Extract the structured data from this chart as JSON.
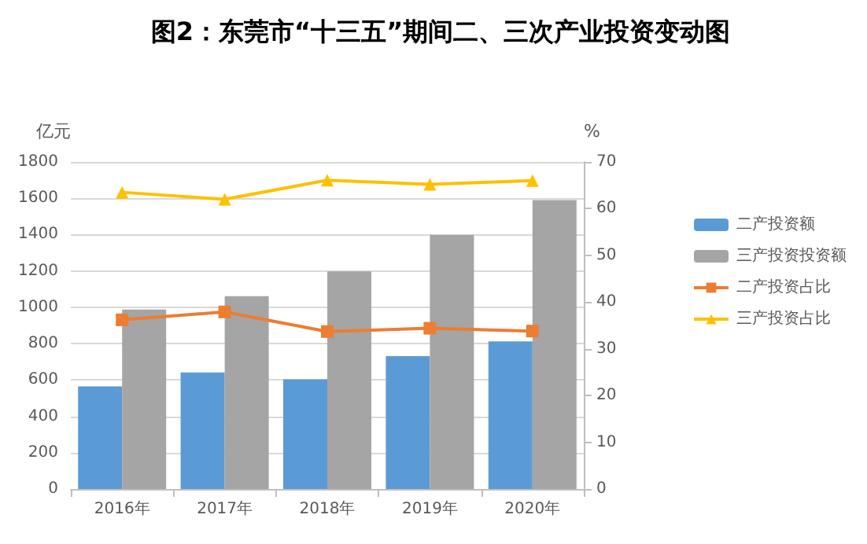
{
  "chart_data": {
    "type": "bar",
    "title": "图2：东莞市“十三五”期间二、三次产业投资变动图",
    "categories": [
      "2016年",
      "2017年",
      "2018年",
      "2019年",
      "2020年"
    ],
    "series": [
      {
        "name": "二产投资额",
        "color": "#5b9bd5",
        "values": [
          565,
          642,
          604,
          731,
          812
        ]
      },
      {
        "name": "三产投资投资额",
        "color": "#a5a5a5",
        "values": [
          988,
          1061,
          1197,
          1399,
          1590
        ]
      },
      {
        "name": "二产投资占比",
        "type": "line",
        "axis": "y2",
        "marker": "square",
        "color": "#ed7d31",
        "values": [
          36.2,
          37.9,
          33.7,
          34.4,
          33.8
        ]
      },
      {
        "name": "三产投资占比",
        "type": "line",
        "axis": "y2",
        "marker": "triangle",
        "color": "#ffc000",
        "values": [
          63.5,
          62.0,
          66.1,
          65.2,
          66.0
        ]
      }
    ],
    "ylabel": "亿元",
    "y2label": "%",
    "ylim": [
      0,
      1800
    ],
    "yticks": [
      0,
      200,
      400,
      600,
      800,
      1000,
      1200,
      1400,
      1600,
      1800
    ],
    "y2lim": [
      0,
      70
    ],
    "y2ticks": [
      0,
      10,
      20,
      30,
      40,
      50,
      60,
      70
    ],
    "grid": "y",
    "legend": "right"
  }
}
